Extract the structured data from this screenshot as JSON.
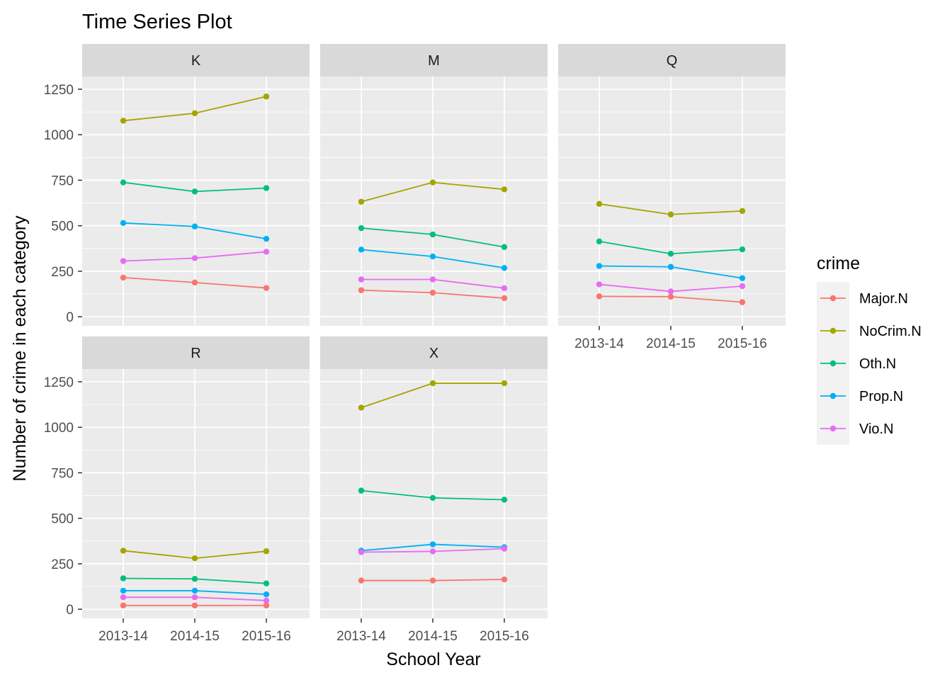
{
  "chart_data": {
    "type": "line",
    "title": "Time Series Plot",
    "xlabel": "School Year",
    "ylabel": "Number of crime in each category",
    "categories": [
      "2013-14",
      "2014-15",
      "2015-16"
    ],
    "y_ticks": [
      0,
      250,
      500,
      750,
      1000,
      1250
    ],
    "y_tick_labels": [
      "0",
      "250",
      "500",
      "750",
      "1000",
      "1250"
    ],
    "ylim": [
      -50,
      1320
    ],
    "grid": true,
    "legend": {
      "title": "crime",
      "position": "right",
      "entries": [
        "Major.N",
        "NoCrim.N",
        "Oth.N",
        "Prop.N",
        "Vio.N"
      ]
    },
    "series_colors": {
      "Major.N": "#F8766D",
      "NoCrim.N": "#A3A500",
      "Oth.N": "#00BF7D",
      "Prop.N": "#00B0F6",
      "Vio.N": "#E76BF3"
    },
    "panels": [
      {
        "label": "K",
        "series": [
          {
            "name": "Major.N",
            "values": [
              215,
              188,
              158
            ]
          },
          {
            "name": "NoCrim.N",
            "values": [
              1077,
              1118,
              1210
            ]
          },
          {
            "name": "Oth.N",
            "values": [
              738,
              688,
              707
            ]
          },
          {
            "name": "Prop.N",
            "values": [
              515,
              496,
              428
            ]
          },
          {
            "name": "Vio.N",
            "values": [
              306,
              322,
              357
            ]
          }
        ]
      },
      {
        "label": "M",
        "series": [
          {
            "name": "Major.N",
            "values": [
              146,
              132,
              102
            ]
          },
          {
            "name": "NoCrim.N",
            "values": [
              632,
              738,
              700
            ]
          },
          {
            "name": "Oth.N",
            "values": [
              487,
              452,
              383
            ]
          },
          {
            "name": "Prop.N",
            "values": [
              369,
              331,
              268
            ]
          },
          {
            "name": "Vio.N",
            "values": [
              205,
              205,
              157
            ]
          }
        ]
      },
      {
        "label": "Q",
        "series": [
          {
            "name": "Major.N",
            "values": [
              112,
              110,
              80
            ]
          },
          {
            "name": "NoCrim.N",
            "values": [
              620,
              562,
              581
            ]
          },
          {
            "name": "Oth.N",
            "values": [
              414,
              346,
              370
            ]
          },
          {
            "name": "Prop.N",
            "values": [
              279,
              274,
              212
            ]
          },
          {
            "name": "Vio.N",
            "values": [
              178,
              139,
              168
            ]
          }
        ]
      },
      {
        "label": "R",
        "series": [
          {
            "name": "Major.N",
            "values": [
              21,
              21,
              21
            ]
          },
          {
            "name": "NoCrim.N",
            "values": [
              322,
              280,
              319
            ]
          },
          {
            "name": "Oth.N",
            "values": [
              170,
              167,
              142
            ]
          },
          {
            "name": "Prop.N",
            "values": [
              102,
              102,
              82
            ]
          },
          {
            "name": "Vio.N",
            "values": [
              66,
              66,
              48
            ]
          }
        ]
      },
      {
        "label": "X",
        "series": [
          {
            "name": "Major.N",
            "values": [
              158,
              158,
              164
            ]
          },
          {
            "name": "NoCrim.N",
            "values": [
              1108,
              1242,
              1242
            ]
          },
          {
            "name": "Oth.N",
            "values": [
              652,
              612,
              602
            ]
          },
          {
            "name": "Prop.N",
            "values": [
              322,
              357,
              341
            ]
          },
          {
            "name": "Vio.N",
            "values": [
              314,
              318,
              333
            ]
          }
        ]
      }
    ]
  }
}
